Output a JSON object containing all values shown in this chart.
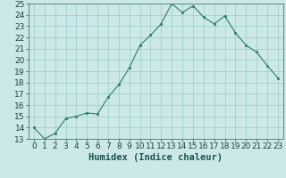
{
  "xlabel": "Humidex (Indice chaleur)",
  "x": [
    0,
    1,
    2,
    3,
    4,
    5,
    6,
    7,
    8,
    9,
    10,
    11,
    12,
    13,
    14,
    15,
    16,
    17,
    18,
    19,
    20,
    21,
    22,
    23
  ],
  "y": [
    14.0,
    13.0,
    13.5,
    14.8,
    15.0,
    15.3,
    15.2,
    16.7,
    17.8,
    19.3,
    21.3,
    22.2,
    23.2,
    25.0,
    24.2,
    24.8,
    23.8,
    23.2,
    23.9,
    22.4,
    21.3,
    20.7,
    19.5,
    18.4
  ],
  "line_color": "#2a7d6e",
  "marker_color": "#2a7d6e",
  "bg_color": "#cce8e8",
  "grid_color": "#99cccc",
  "ylim": [
    13,
    25
  ],
  "yticks": [
    13,
    14,
    15,
    16,
    17,
    18,
    19,
    20,
    21,
    22,
    23,
    24,
    25
  ],
  "xticks": [
    0,
    1,
    2,
    3,
    4,
    5,
    6,
    7,
    8,
    9,
    10,
    11,
    12,
    13,
    14,
    15,
    16,
    17,
    18,
    19,
    20,
    21,
    22,
    23
  ],
  "xlabel_fontsize": 7.5,
  "tick_fontsize": 6.5
}
